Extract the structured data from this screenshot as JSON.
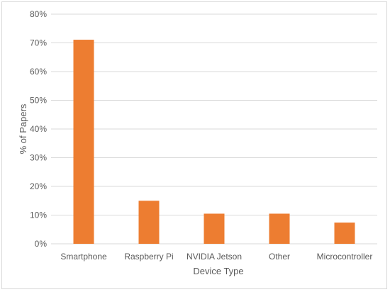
{
  "chart_data": {
    "type": "bar",
    "title": "",
    "xlabel": "Device Type",
    "ylabel": "% of Papers",
    "categories": [
      "Smartphone",
      "Raspberry Pi",
      "NVIDIA Jetson",
      "Other",
      "Microcontroller"
    ],
    "values": [
      71.1,
      15.0,
      10.5,
      10.5,
      7.4
    ],
    "ylim": [
      0,
      80
    ],
    "yticks": [
      "0%",
      "10%",
      "20%",
      "30%",
      "40%",
      "50%",
      "60%",
      "70%",
      "80%"
    ],
    "grid": true,
    "legend": "none",
    "bar_color": "#ED7D31",
    "grid_color": "#D9D9D9"
  }
}
